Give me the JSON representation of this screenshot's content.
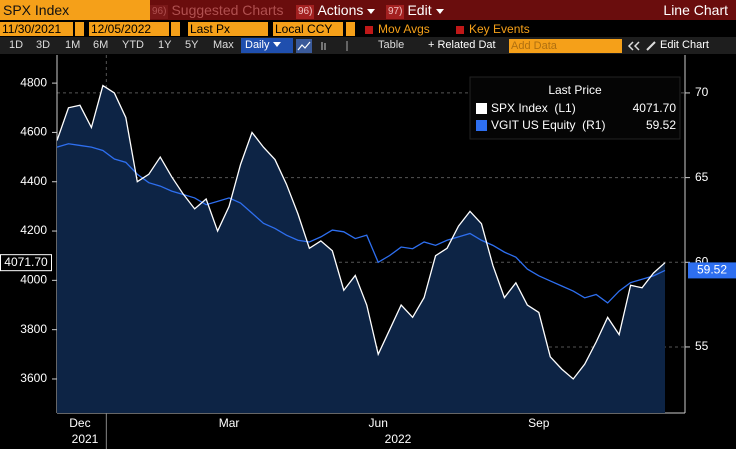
{
  "toolbar": {
    "security": "SPX Index",
    "menus": [
      {
        "code": "96)",
        "label": "Suggested Charts"
      },
      {
        "code": "96)",
        "label": "Actions"
      },
      {
        "code": "97)",
        "label": "Edit"
      }
    ],
    "view": "Line Chart",
    "start_date": "11/30/2021",
    "end_date": "12/05/2022",
    "field": "Last Px",
    "currency": "Local CCY",
    "options": [
      "Mov Avgs",
      "Key Events"
    ],
    "periods": [
      "1D",
      "3D",
      "1M",
      "6M",
      "YTD",
      "1Y",
      "5Y",
      "Max"
    ],
    "frequency": "Daily",
    "table": "Table",
    "related": "+ Related Dat",
    "add_data": "Add Data",
    "edit_chart": "Edit Chart"
  },
  "chart_data": {
    "type": "line",
    "legend_title": "Last Price",
    "legend": "upper right",
    "categories": [
      null,
      null,
      "Dec",
      null,
      null,
      null,
      null,
      null,
      null,
      null,
      null,
      null,
      null,
      null,
      null,
      "Mar",
      null,
      null,
      null,
      null,
      null,
      null,
      null,
      null,
      null,
      null,
      null,
      null,
      "Jun",
      null,
      null,
      null,
      null,
      null,
      null,
      null,
      null,
      null,
      null,
      null,
      null,
      null,
      "Sep",
      null,
      null,
      null,
      null,
      null,
      null,
      null,
      null,
      null,
      null,
      null
    ],
    "year_labels": [
      "2021",
      "2022"
    ],
    "series": [
      {
        "name": "SPX Index  (L1)",
        "color": "#ffffff",
        "fill": "#0d2445",
        "last_value_label": "4071.70",
        "values": [
          4567,
          4700,
          4710,
          4620,
          4790,
          4760,
          4660,
          4400,
          4430,
          4500,
          4420,
          4350,
          4290,
          4330,
          4200,
          4300,
          4470,
          4600,
          4540,
          4490,
          4390,
          4270,
          4130,
          4160,
          4120,
          3960,
          4020,
          3900,
          3700,
          3800,
          3900,
          3850,
          3930,
          4100,
          4130,
          4220,
          4280,
          4230,
          4060,
          3930,
          3990,
          3900,
          3870,
          3690,
          3640,
          3600,
          3660,
          3750,
          3850,
          3780,
          3980,
          3970,
          4030,
          4071.7
        ]
      },
      {
        "name": "VGIT US Equity  (R1)",
        "color": "#2e6ff0",
        "axis": "y2",
        "last_value_label": "59.52",
        "values": [
          66.8,
          67.0,
          66.9,
          66.8,
          66.6,
          66.1,
          65.9,
          65.2,
          64.7,
          64.5,
          64.2,
          64.0,
          63.8,
          63.4,
          63.6,
          63.8,
          63.5,
          62.9,
          62.3,
          62.0,
          61.6,
          61.3,
          61.2,
          61.5,
          61.9,
          61.8,
          61.4,
          61.6,
          60.0,
          60.4,
          60.9,
          60.8,
          61.2,
          61.0,
          61.3,
          61.5,
          61.7,
          61.3,
          61.0,
          60.6,
          60.3,
          59.6,
          59.2,
          58.9,
          58.6,
          58.3,
          57.9,
          58.1,
          57.6,
          58.3,
          58.8,
          59.0,
          59.2,
          59.52
        ]
      }
    ],
    "ylim": [
      3462,
      4914
    ],
    "yticks": [
      3600,
      3800,
      4000,
      4200,
      4400,
      4600,
      4800
    ],
    "y2lim": [
      51.1,
      72.24
    ],
    "y2ticks": [
      55,
      60,
      65,
      70
    ],
    "grid": true
  }
}
